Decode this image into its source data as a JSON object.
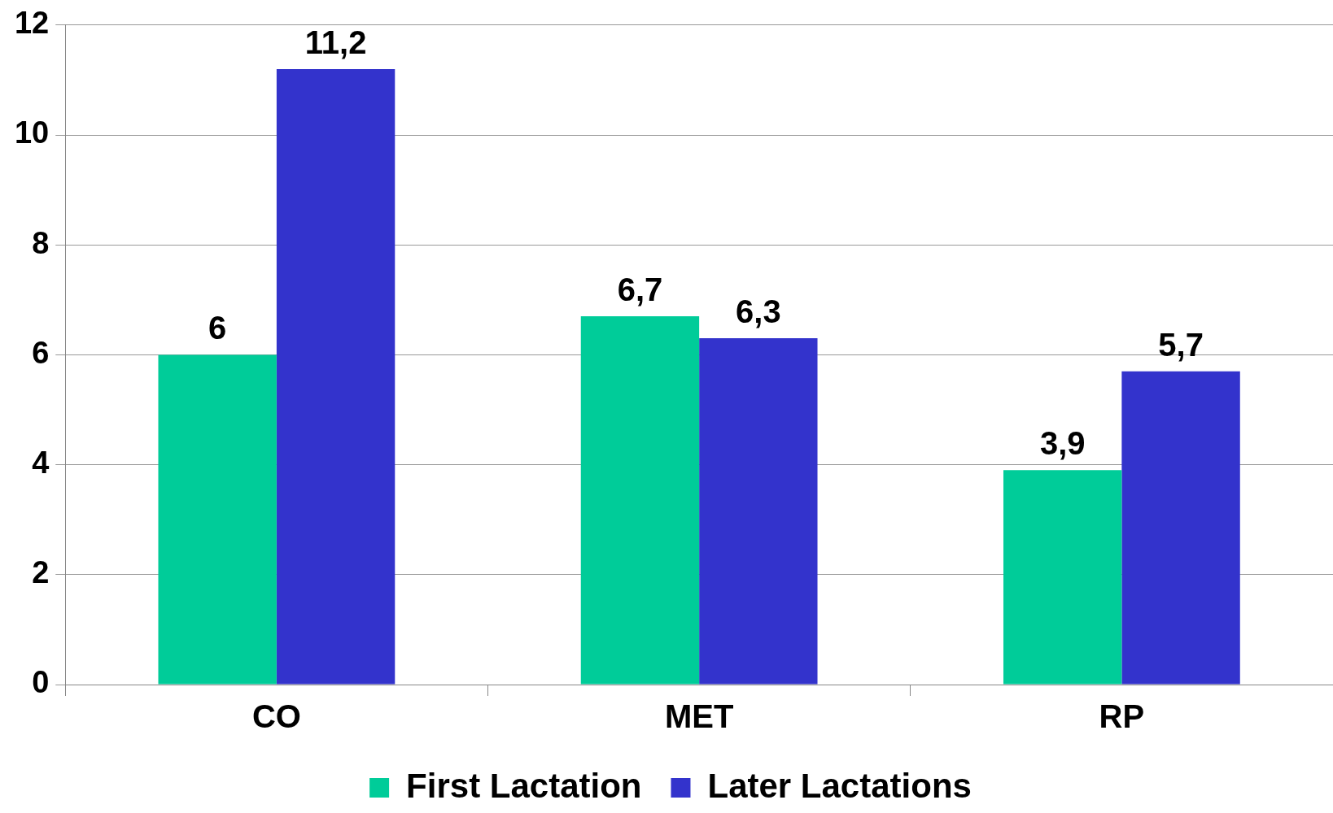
{
  "chart_data": {
    "type": "bar",
    "categories": [
      "CO",
      "MET",
      "RP"
    ],
    "series": [
      {
        "name": "First Lactation",
        "color": "#00cc99",
        "values": [
          6,
          6.7,
          3.9
        ],
        "value_labels": [
          "6",
          "6,7",
          "3,9"
        ]
      },
      {
        "name": "Later Lactations",
        "color": "#3333cc",
        "values": [
          11.2,
          6.3,
          5.7
        ],
        "value_labels": [
          "11,2",
          "6,3",
          "5,7"
        ]
      }
    ],
    "ylim": [
      0,
      12
    ],
    "yticks": [
      0,
      2,
      4,
      6,
      8,
      10,
      12
    ],
    "grid": "y",
    "legend": "bottom"
  }
}
